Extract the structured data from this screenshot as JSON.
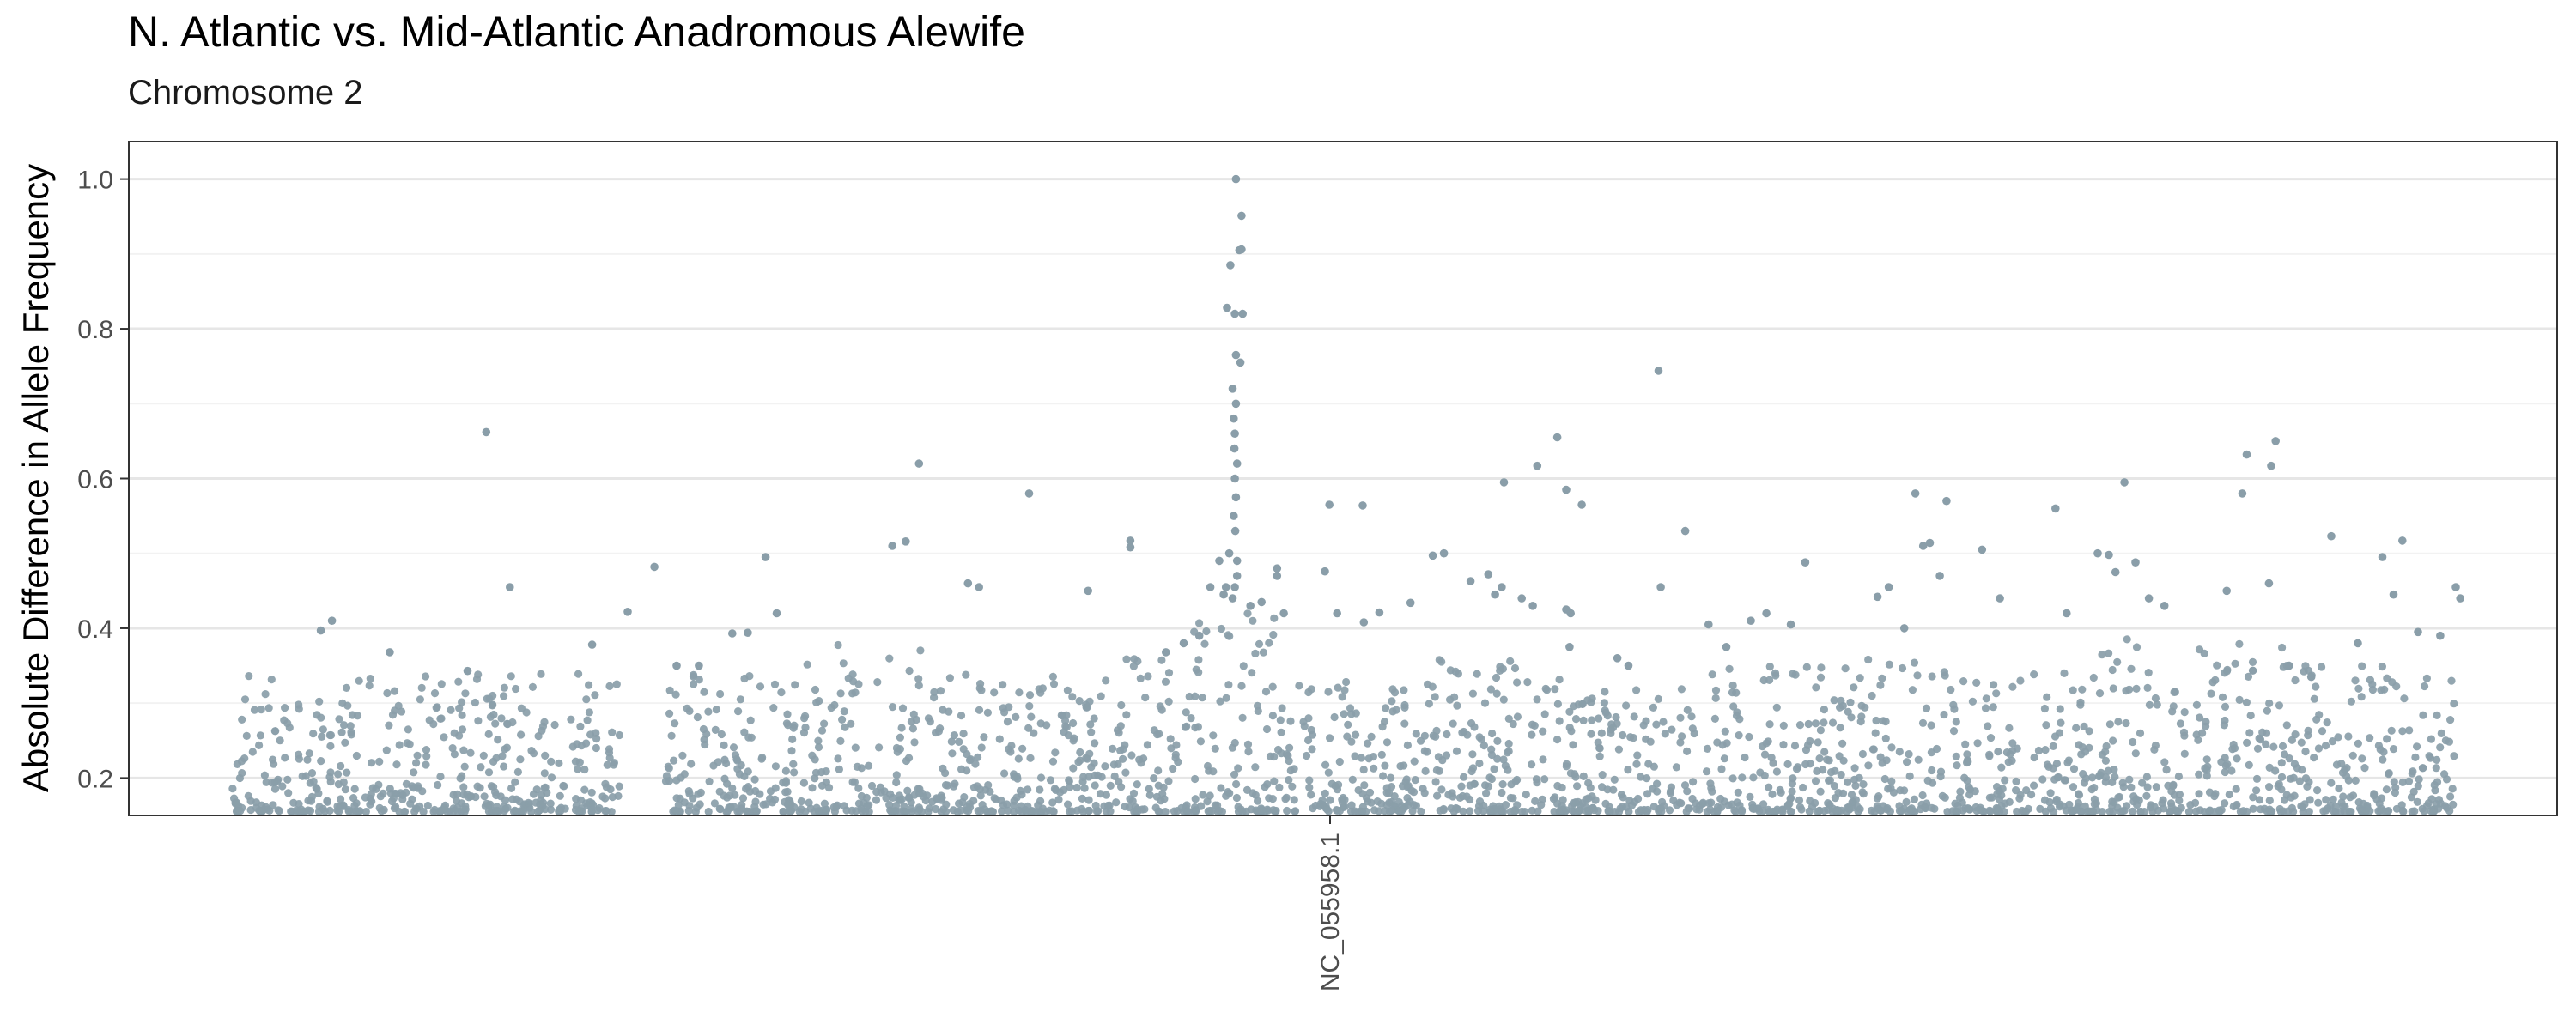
{
  "chart_data": {
    "type": "scatter",
    "title": "N. Atlantic vs. Mid-Atlantic Anadromous Alewife",
    "subtitle": "Chromosome 2",
    "xlabel": "",
    "ylabel": "Absolute Difference in Allele Frequency",
    "x_tick_labels": [
      "NC_055958.1"
    ],
    "y_ticks": [
      0.2,
      0.4,
      0.6,
      0.8,
      1.0
    ],
    "y_tick_labels": [
      "0.2",
      "0.4",
      "0.6",
      "0.8",
      "1.0"
    ],
    "ylim": [
      0.15,
      1.05
    ],
    "grid": true,
    "legend": "none",
    "point_color": "#8a9ea9",
    "series": [
      {
        "points": [
          [
            0.04,
            0.397
          ],
          [
            0.045,
            0.41
          ],
          [
            0.071,
            0.368
          ],
          [
            0.106,
            0.343
          ],
          [
            0.1144,
            0.662
          ],
          [
            0.125,
            0.455
          ],
          [
            0.162,
            0.378
          ],
          [
            0.178,
            0.422
          ],
          [
            0.19,
            0.482
          ],
          [
            0.2,
            0.35
          ],
          [
            0.21,
            0.35
          ],
          [
            0.225,
            0.393
          ],
          [
            0.232,
            0.394
          ],
          [
            0.24,
            0.495
          ],
          [
            0.245,
            0.42
          ],
          [
            0.297,
            0.51
          ],
          [
            0.303,
            0.516
          ],
          [
            0.309,
            0.62
          ],
          [
            0.331,
            0.46
          ],
          [
            0.336,
            0.455
          ],
          [
            0.3585,
            0.58
          ],
          [
            0.385,
            0.45
          ],
          [
            0.404,
            0.517
          ],
          [
            0.404,
            0.508
          ],
          [
            0.42,
            0.368
          ],
          [
            0.428,
            0.38
          ],
          [
            0.435,
            0.39
          ],
          [
            0.44,
            0.455
          ],
          [
            0.446,
            0.445
          ],
          [
            0.447,
            0.455
          ],
          [
            0.444,
            0.49
          ],
          [
            0.4485,
            0.5
          ],
          [
            0.452,
            0.49
          ],
          [
            0.4515,
            1.0
          ],
          [
            0.454,
            0.951
          ],
          [
            0.454,
            0.906
          ],
          [
            0.4475,
            0.828
          ],
          [
            0.451,
            0.82
          ],
          [
            0.4545,
            0.82
          ],
          [
            0.449,
            0.885
          ],
          [
            0.453,
            0.905
          ],
          [
            0.4515,
            0.765
          ],
          [
            0.4535,
            0.755
          ],
          [
            0.45,
            0.72
          ],
          [
            0.4515,
            0.7
          ],
          [
            0.4505,
            0.68
          ],
          [
            0.451,
            0.66
          ],
          [
            0.4508,
            0.64
          ],
          [
            0.452,
            0.62
          ],
          [
            0.451,
            0.6
          ],
          [
            0.4515,
            0.575
          ],
          [
            0.4505,
            0.55
          ],
          [
            0.4512,
            0.53
          ],
          [
            0.452,
            0.47
          ],
          [
            0.451,
            0.455
          ],
          [
            0.45,
            0.44
          ],
          [
            0.458,
            0.43
          ],
          [
            0.463,
            0.435
          ],
          [
            0.47,
            0.48
          ],
          [
            0.47,
            0.47
          ],
          [
            0.473,
            0.42
          ],
          [
            0.497,
            0.42
          ],
          [
            0.4915,
            0.476
          ],
          [
            0.4935,
            0.565
          ],
          [
            0.509,
            0.408
          ],
          [
            0.516,
            0.421
          ],
          [
            0.5085,
            0.564
          ],
          [
            0.53,
            0.434
          ],
          [
            0.54,
            0.497
          ],
          [
            0.545,
            0.5
          ],
          [
            0.557,
            0.463
          ],
          [
            0.565,
            0.472
          ],
          [
            0.568,
            0.445
          ],
          [
            0.571,
            0.455
          ],
          [
            0.572,
            0.595
          ],
          [
            0.58,
            0.44
          ],
          [
            0.585,
            0.43
          ],
          [
            0.587,
            0.617
          ],
          [
            0.596,
            0.655
          ],
          [
            0.6,
            0.585
          ],
          [
            0.607,
            0.565
          ],
          [
            0.602,
            0.42
          ],
          [
            0.6,
            0.425
          ],
          [
            0.6015,
            0.375
          ],
          [
            0.623,
            0.36
          ],
          [
            0.628,
            0.35
          ],
          [
            0.6415,
            0.744
          ],
          [
            0.6425,
            0.455
          ],
          [
            0.6535,
            0.53
          ],
          [
            0.664,
            0.405
          ],
          [
            0.672,
            0.375
          ],
          [
            0.683,
            0.41
          ],
          [
            0.69,
            0.42
          ],
          [
            0.701,
            0.405
          ],
          [
            0.7075,
            0.488
          ],
          [
            0.74,
            0.442
          ],
          [
            0.745,
            0.455
          ],
          [
            0.752,
            0.4
          ],
          [
            0.757,
            0.58
          ],
          [
            0.7605,
            0.51
          ],
          [
            0.7635,
            0.514
          ],
          [
            0.768,
            0.47
          ],
          [
            0.771,
            0.57
          ],
          [
            0.787,
            0.505
          ],
          [
            0.795,
            0.44
          ],
          [
            0.82,
            0.56
          ],
          [
            0.825,
            0.42
          ],
          [
            0.839,
            0.5
          ],
          [
            0.844,
            0.498
          ],
          [
            0.847,
            0.475
          ],
          [
            0.851,
            0.595
          ],
          [
            0.856,
            0.488
          ],
          [
            0.862,
            0.44
          ],
          [
            0.869,
            0.43
          ],
          [
            0.897,
            0.45
          ],
          [
            0.904,
            0.58
          ],
          [
            0.906,
            0.632
          ],
          [
            0.916,
            0.46
          ],
          [
            0.917,
            0.617
          ],
          [
            0.919,
            0.65
          ],
          [
            0.925,
            0.35
          ],
          [
            0.935,
            0.335
          ],
          [
            0.944,
            0.523
          ],
          [
            0.956,
            0.38
          ],
          [
            0.967,
            0.495
          ],
          [
            0.972,
            0.445
          ],
          [
            0.976,
            0.517
          ],
          [
            0.983,
            0.395
          ],
          [
            0.993,
            0.39
          ],
          [
            1.0,
            0.455
          ],
          [
            1.002,
            0.44
          ]
        ]
      }
    ]
  }
}
